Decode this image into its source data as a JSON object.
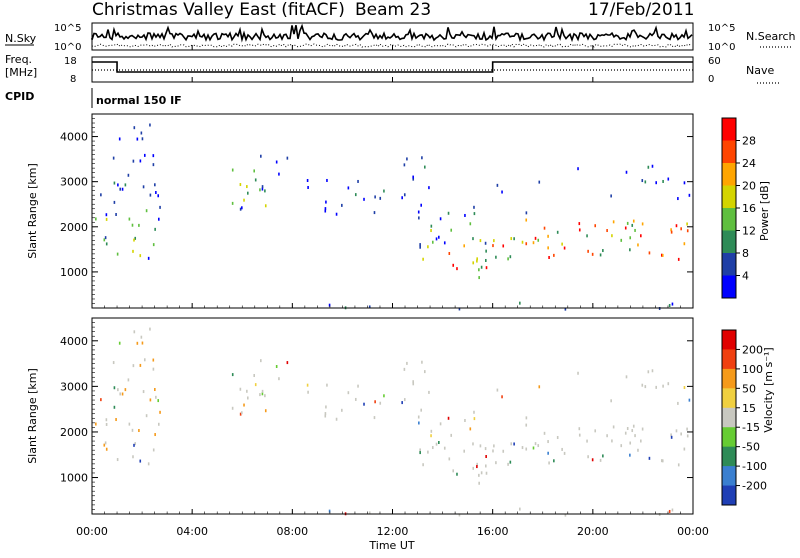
{
  "header": {
    "station": "Christmas Valley East (fitACF)",
    "beam": "Beam 23",
    "date": "17/Feb/2011"
  },
  "top_panels": {
    "nsky_label": "N.Sky",
    "nsky_ticks": [
      "10^5",
      "10^0"
    ],
    "nsearch_label": "N.Search",
    "nsearch_ticks": [
      "10^5",
      "10^0"
    ],
    "freq_label": "Freq.",
    "freq_unit": "[MHz]",
    "freq_ticks": [
      "18",
      "8"
    ],
    "nave_label": "Nave",
    "nave_ticks": [
      "60",
      "0"
    ],
    "cpid_label": "CPID",
    "cpid_value": "normal 150 IF"
  },
  "chart_data": [
    {
      "type": "heatmap",
      "panel": "power",
      "ylabel": "Slant Range [km]",
      "yticks": [
        "4000",
        "3000",
        "2000",
        "1000"
      ],
      "ylim": [
        200,
        4500
      ],
      "colorbar_label": "Power [dB]",
      "colorbar_ticks": [
        "28",
        "24",
        "20",
        "16",
        "12",
        "8",
        "4"
      ],
      "colors": [
        "#0000ff",
        "#1f3fa6",
        "#2e8b57",
        "#5fbf3f",
        "#d4d400",
        "#ffa500",
        "#ff4500",
        "#ff0000"
      ]
    },
    {
      "type": "heatmap",
      "panel": "velocity",
      "ylabel": "Slant Range [km]",
      "yticks": [
        "4000",
        "3000",
        "2000",
        "1000"
      ],
      "ylim": [
        200,
        4500
      ],
      "colorbar_label": "Velocity [m s⁻¹]",
      "colorbar_ticks": [
        "200",
        "100",
        "50",
        "15",
        "-15",
        "-50",
        "-100",
        "-200"
      ],
      "colors": [
        "#1f3fb5",
        "#3a7fd0",
        "#2e8b57",
        "#66cc33",
        "#c8c8c0",
        "#f0d040",
        "#f59a1a",
        "#f04010",
        "#e00000"
      ],
      "xlabel": "Time UT",
      "xticks": [
        "00:00",
        "04:00",
        "08:00",
        "12:00",
        "16:00",
        "20:00",
        "00:00"
      ]
    }
  ]
}
